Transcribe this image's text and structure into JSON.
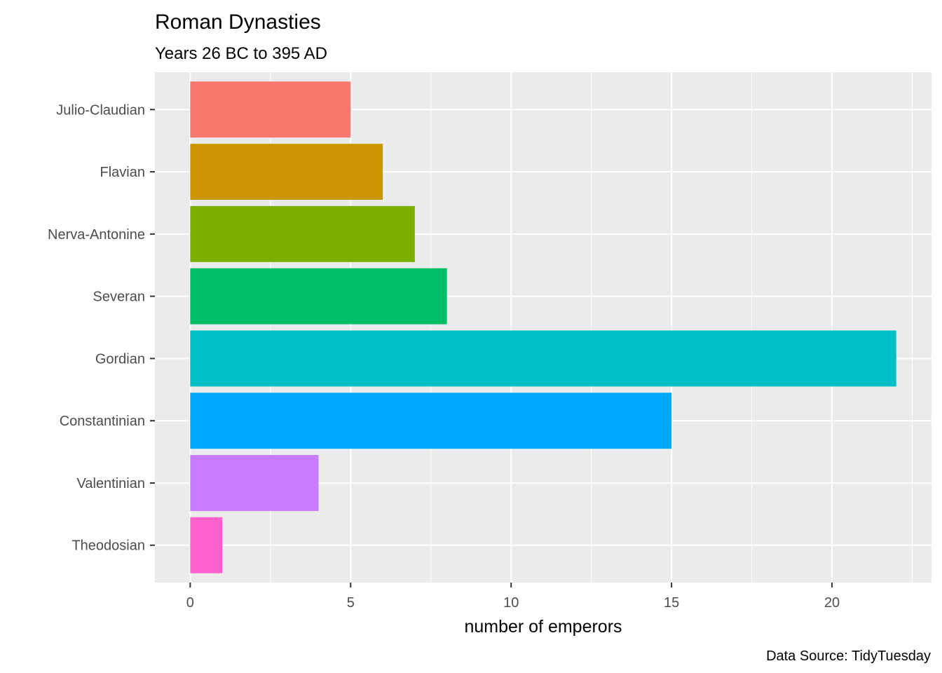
{
  "chart_data": {
    "type": "bar",
    "orientation": "horizontal",
    "title": "Roman Dynasties",
    "subtitle": "Years 26 BC to 395 AD",
    "xlabel": "number of emperors",
    "ylabel": "",
    "caption": "Data Source: TidyTuesday",
    "categories": [
      "Julio-Claudian",
      "Flavian",
      "Nerva-Antonine",
      "Severan",
      "Gordian",
      "Constantinian",
      "Valentinian",
      "Theodosian"
    ],
    "values": [
      5,
      6,
      7,
      8,
      22,
      15,
      4,
      1
    ],
    "colors": [
      "#F8766D",
      "#CD9600",
      "#7CAE00",
      "#00BE67",
      "#00BFC4",
      "#00A9FF",
      "#C77CFF",
      "#FF61CC"
    ],
    "xlim": [
      -1.1,
      23.1
    ],
    "xticks": [
      0,
      5,
      10,
      15,
      20
    ],
    "xtick_labels": [
      "0",
      "5",
      "10",
      "15",
      "20"
    ],
    "grid": true,
    "legend": "none",
    "panel_background": "#EBEBEB",
    "grid_color": "#FFFFFF"
  }
}
